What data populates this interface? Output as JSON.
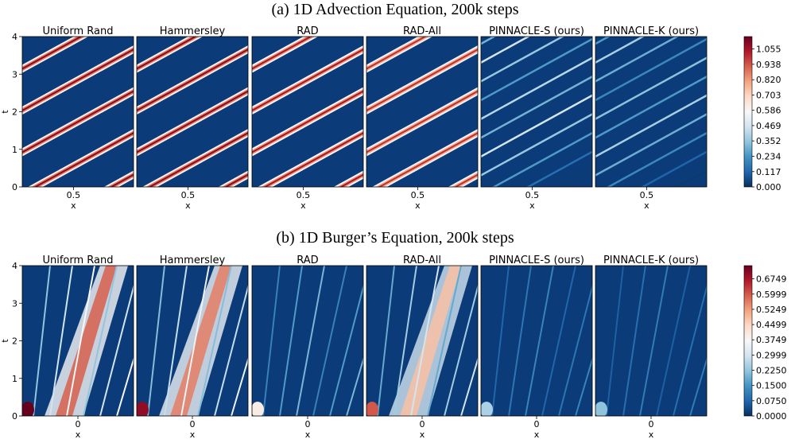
{
  "colors": {
    "cmap": [
      "#053061",
      "#2166ac",
      "#4393c3",
      "#92c5de",
      "#d1e5f0",
      "#f7f7f7",
      "#fddbc7",
      "#f4a582",
      "#d6604d",
      "#b2182b",
      "#67001f"
    ],
    "background": "#0b3b78"
  },
  "chart_data": [
    {
      "type": "heatmap",
      "title": "(a) 1D Advection Equation, 200k steps",
      "xlabel": "x",
      "ylabel": "t",
      "x_ticks": [
        "0.5"
      ],
      "y_ticks": [
        "0",
        "1",
        "2",
        "3",
        "4"
      ],
      "ylim": [
        0,
        4
      ],
      "colorbar": {
        "min": 0.0,
        "max": 1.15,
        "ticks": [
          "0.000",
          "0.117",
          "0.234",
          "0.352",
          "0.469",
          "0.586",
          "0.703",
          "0.820",
          "0.938",
          "1.055"
        ],
        "tick_values": [
          0.0,
          0.117,
          0.234,
          0.352,
          0.469,
          0.586,
          0.703,
          0.82,
          0.938,
          1.055
        ]
      },
      "panels": [
        {
          "title": "Uniform Rand",
          "max_error": 1.1,
          "pattern": "periodic diagonal error bands"
        },
        {
          "title": "Hammersley",
          "max_error": 1.1,
          "pattern": "periodic diagonal error bands"
        },
        {
          "title": "RAD",
          "max_error": 1.05,
          "pattern": "periodic diagonal error bands"
        },
        {
          "title": "RAD-All",
          "max_error": 1.0,
          "pattern": "weaker diagonal error bands"
        },
        {
          "title": "PINNACLE-S (ours)",
          "max_error": 0.55,
          "pattern": "thin diagonal streaks"
        },
        {
          "title": "PINNACLE-K (ours)",
          "max_error": 0.45,
          "pattern": "faint diagonal streaks"
        }
      ]
    },
    {
      "type": "heatmap",
      "title": "(b) 1D Burger’s Equation, 200k steps",
      "xlabel": "x",
      "ylabel": "t",
      "x_ticks": [
        "0"
      ],
      "y_ticks": [
        "0",
        "1",
        "2",
        "3",
        "4"
      ],
      "ylim": [
        0,
        4
      ],
      "colorbar": {
        "min": 0.0,
        "max": 0.74,
        "ticks": [
          "0.0000",
          "0.0750",
          "0.1500",
          "0.2250",
          "0.2999",
          "0.3749",
          "0.4499",
          "0.5249",
          "0.5999",
          "0.6749"
        ],
        "tick_values": [
          0.0,
          0.075,
          0.15,
          0.225,
          0.2999,
          0.3749,
          0.4499,
          0.5249,
          0.5999,
          0.6749
        ]
      },
      "panels": [
        {
          "title": "Uniform Rand",
          "max_error": 0.74,
          "pattern": "wedge error near shock"
        },
        {
          "title": "Hammersley",
          "max_error": 0.7,
          "pattern": "wedge error near shock"
        },
        {
          "title": "RAD",
          "max_error": 0.4,
          "pattern": "thin shock streaks"
        },
        {
          "title": "RAD-All",
          "max_error": 0.6,
          "pattern": "wedge error near shock"
        },
        {
          "title": "PINNACLE-S (ours)",
          "max_error": 0.25,
          "pattern": "faint shock streaks"
        },
        {
          "title": "PINNACLE-K (ours)",
          "max_error": 0.22,
          "pattern": "faint shock streaks"
        }
      ]
    }
  ]
}
